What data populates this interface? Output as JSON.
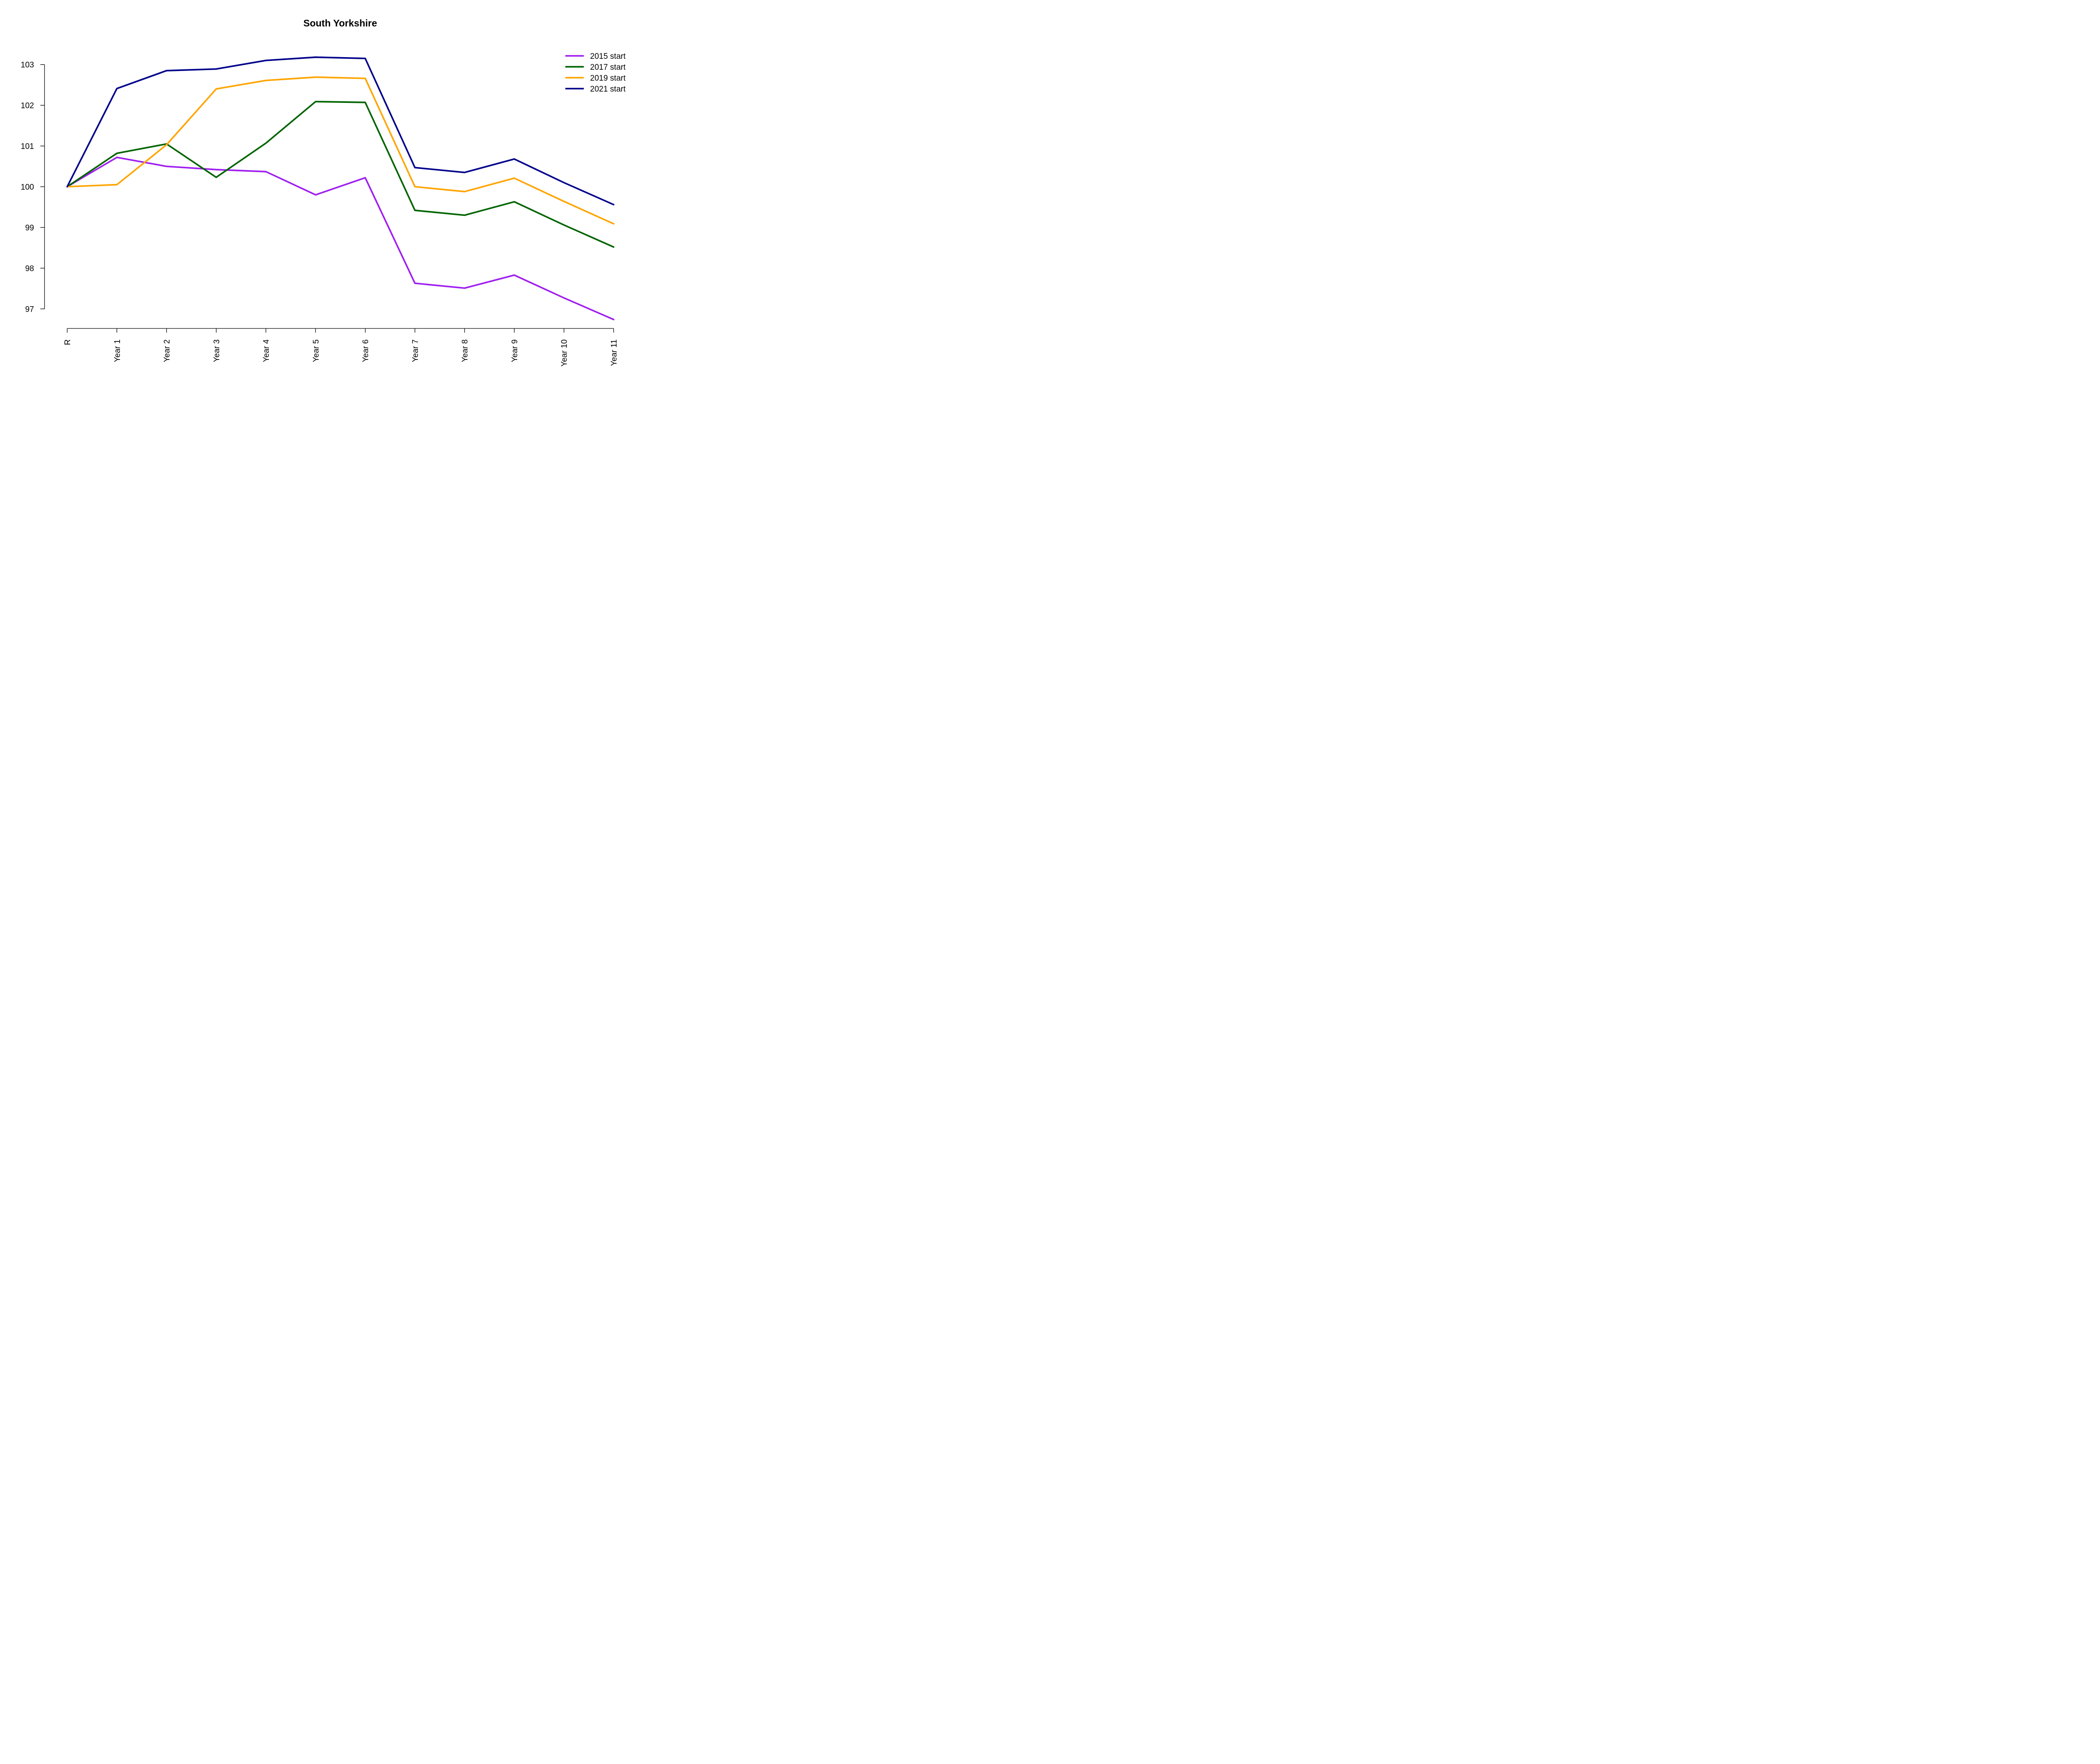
{
  "chart_data": {
    "type": "line",
    "title": "South Yorkshire",
    "xlabel": "",
    "ylabel": "",
    "categories": [
      "R",
      "Year 1",
      "Year 2",
      "Year 3",
      "Year 4",
      "Year 5",
      "Year 6",
      "Year 7",
      "Year 8",
      "Year 9",
      "Year 10",
      "Year 11"
    ],
    "yticks": [
      97,
      98,
      99,
      100,
      101,
      102,
      103
    ],
    "ylim": [
      96.52,
      103.45
    ],
    "grid": false,
    "legend_position": "top-right",
    "series": [
      {
        "name": "2015 start",
        "color": "#a020f0",
        "values": [
          100.0,
          100.72,
          100.5,
          100.42,
          100.37,
          99.8,
          100.22,
          97.63,
          97.51,
          97.83,
          97.27,
          96.74
        ]
      },
      {
        "name": "2017 start",
        "color": "#006400",
        "values": [
          100.0,
          100.82,
          101.05,
          100.23,
          101.07,
          102.09,
          102.07,
          99.42,
          99.3,
          99.63,
          99.06,
          98.52
        ]
      },
      {
        "name": "2019 start",
        "color": "#ffa500",
        "values": [
          100.0,
          100.05,
          101.03,
          102.4,
          102.61,
          102.69,
          102.66,
          100.0,
          99.88,
          100.21,
          99.64,
          99.09
        ]
      },
      {
        "name": "2021 start",
        "color": "#00008b",
        "values": [
          100.0,
          102.41,
          102.85,
          102.89,
          103.1,
          103.18,
          103.15,
          100.47,
          100.35,
          100.68,
          100.1,
          99.56
        ]
      }
    ]
  }
}
